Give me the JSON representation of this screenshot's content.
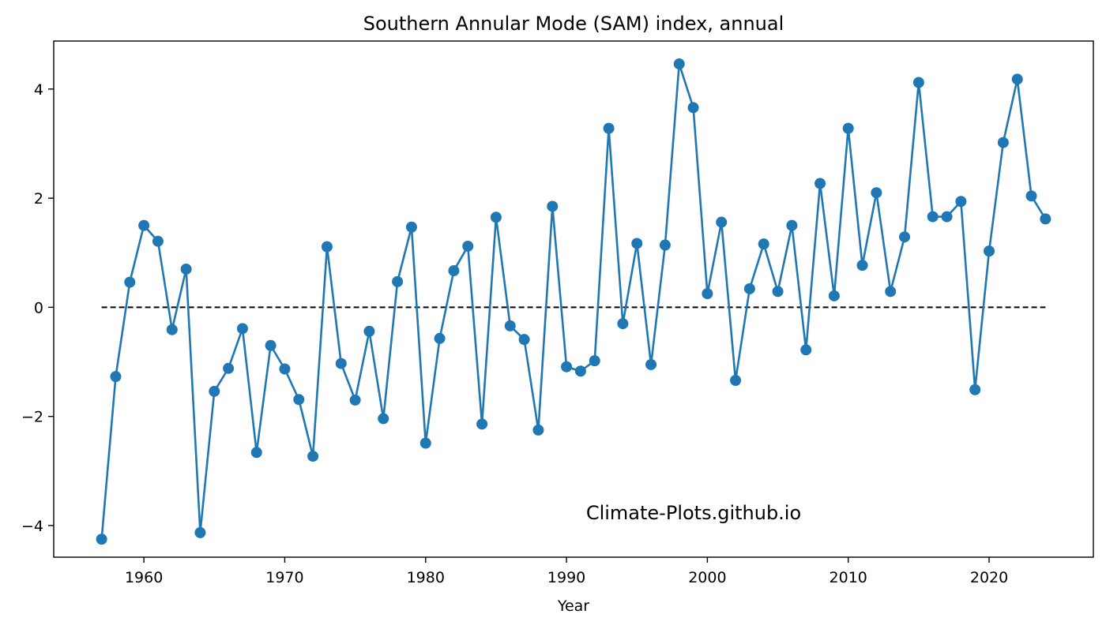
{
  "chart_data": {
    "type": "line",
    "title": "Southern Annular Mode (SAM) index, annual",
    "xlabel": "Year",
    "ylabel": "",
    "xlim": [
      1953.4,
      1927.6
    ],
    "ylim": [
      -4.58,
      4.88
    ],
    "xticks": [
      1960,
      1970,
      1980,
      1990,
      2000,
      2010,
      2020
    ],
    "yticks": [
      -4,
      -2,
      0,
      2,
      4
    ],
    "grid": false,
    "marker": "circle",
    "line_color": "#1f77b4",
    "reference_line": {
      "y": 0,
      "style": "dashed",
      "color": "#000000",
      "x_start": 1957,
      "x_end": 2024
    },
    "annotation": "Climate-Plots.github.io",
    "series": [
      {
        "x": [
          1957,
          1958,
          1959,
          1960,
          1961,
          1962,
          1963,
          1964,
          1965,
          1966,
          1967,
          1968,
          1969,
          1970,
          1971,
          1972,
          1973,
          1974,
          1975,
          1976,
          1977,
          1978,
          1979,
          1980,
          1981,
          1982,
          1983,
          1984,
          1985,
          1986,
          1987,
          1988,
          1989,
          1990,
          1991,
          1992,
          1993,
          1994,
          1995,
          1996,
          1997,
          1998,
          1999,
          2000,
          2001,
          2002,
          2003,
          2004,
          2005,
          2006,
          2007,
          2008,
          2009,
          2010,
          2011,
          2012,
          2013,
          2014,
          2015,
          2016,
          2017,
          2018,
          2019,
          2020,
          2021,
          2022,
          2023,
          2024
        ],
        "values": [
          -4.25,
          -1.27,
          0.46,
          1.5,
          1.21,
          -0.41,
          0.7,
          -4.13,
          -1.54,
          -1.12,
          -0.39,
          -2.66,
          -0.7,
          -1.13,
          -1.69,
          -2.73,
          1.11,
          -1.03,
          -1.7,
          -0.44,
          -2.04,
          0.47,
          1.47,
          -2.49,
          -0.57,
          0.67,
          1.12,
          -2.14,
          1.65,
          -0.34,
          -0.59,
          -2.25,
          1.85,
          -1.09,
          -1.17,
          -0.98,
          3.28,
          -0.3,
          1.17,
          -1.05,
          1.14,
          4.46,
          3.66,
          0.25,
          1.56,
          -1.34,
          0.34,
          1.16,
          0.29,
          1.5,
          -0.78,
          2.27,
          0.21,
          3.28,
          0.77,
          2.1,
          0.29,
          1.29,
          4.12,
          1.66,
          1.66,
          1.94,
          -1.51,
          1.03,
          3.02,
          4.18,
          2.04,
          1.62
        ]
      }
    ]
  }
}
